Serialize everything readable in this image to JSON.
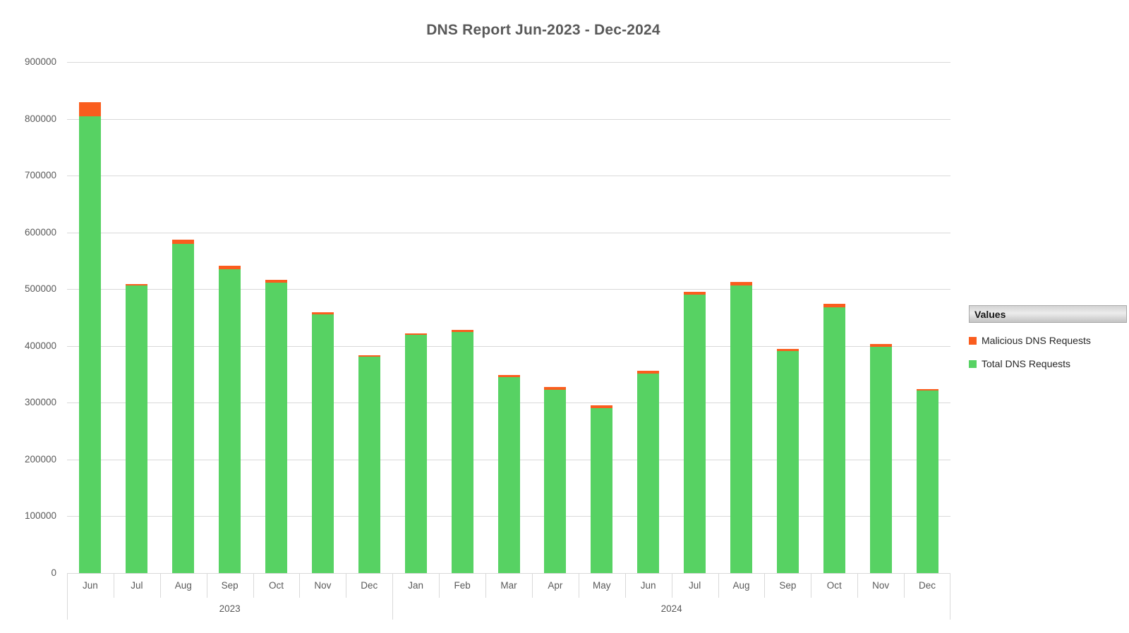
{
  "chart_data": {
    "type": "bar",
    "stacked": true,
    "title": "DNS Report Jun-2023 - Dec-2024",
    "categories": [
      "Jun",
      "Jul",
      "Aug",
      "Sep",
      "Oct",
      "Nov",
      "Dec",
      "Jan",
      "Feb",
      "Mar",
      "Apr",
      "May",
      "Jun",
      "Jul",
      "Aug",
      "Sep",
      "Oct",
      "Nov",
      "Dec"
    ],
    "year_groups": [
      {
        "label": "2023",
        "span": 7
      },
      {
        "label": "2024",
        "span": 12
      }
    ],
    "series": [
      {
        "name": "Total DNS Requests",
        "color": "#57d263",
        "values": [
          805000,
          506000,
          580000,
          535000,
          512000,
          455000,
          381000,
          419000,
          424000,
          345000,
          323000,
          291000,
          351000,
          490000,
          506000,
          391000,
          468000,
          399000,
          321000
        ]
      },
      {
        "name": "Malicious DNS Requests",
        "color": "#fa5d1e",
        "values": [
          25000,
          3000,
          8000,
          6000,
          5000,
          4000,
          3000,
          3000,
          4000,
          4000,
          5000,
          5000,
          5000,
          5000,
          6000,
          4000,
          6000,
          5000,
          3000
        ]
      }
    ],
    "xlabel": "",
    "ylabel": "",
    "ylim": [
      0,
      900000
    ],
    "ytick_interval": 100000,
    "yticks": [
      "0",
      "100000",
      "200000",
      "300000",
      "400000",
      "500000",
      "600000",
      "700000",
      "800000",
      "900000"
    ],
    "grid": true,
    "legend_position": "right"
  },
  "legend": {
    "header": "Values",
    "items": [
      {
        "label": "Malicious DNS Requests",
        "color": "#fa5d1e"
      },
      {
        "label": "Total DNS Requests",
        "color": "#57d263"
      }
    ]
  },
  "colors": {
    "title_text": "#595959",
    "axis_text": "#595959",
    "gridline": "#d9d9d9",
    "background": "#ffffff"
  }
}
